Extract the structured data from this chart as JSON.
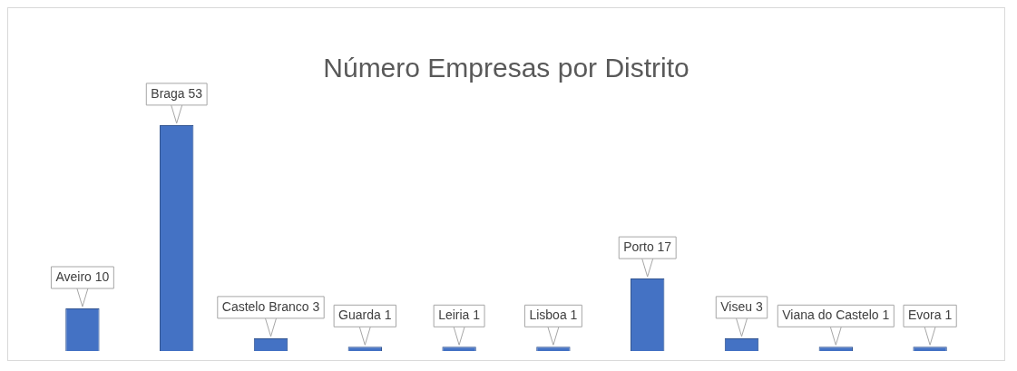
{
  "chart_data": {
    "type": "bar",
    "title": "Número Empresas por Distrito",
    "categories": [
      null,
      null,
      null,
      null,
      null,
      null,
      null,
      null,
      null,
      null
    ],
    "values": [
      10,
      53,
      3,
      1,
      1,
      1,
      17,
      3,
      1,
      1
    ],
    "value_labels": [
      "Aveiro 10",
      "Braga 53",
      "Castelo Branco 3",
      "Guarda 1",
      "Leiria 1",
      "Lisboa 1",
      "Porto 17",
      "Viseu 3",
      "Viana do Castelo 1",
      "Evora 1"
    ],
    "color": "#4472c4",
    "tick_labels": false,
    "grid": false,
    "legend": false
  }
}
